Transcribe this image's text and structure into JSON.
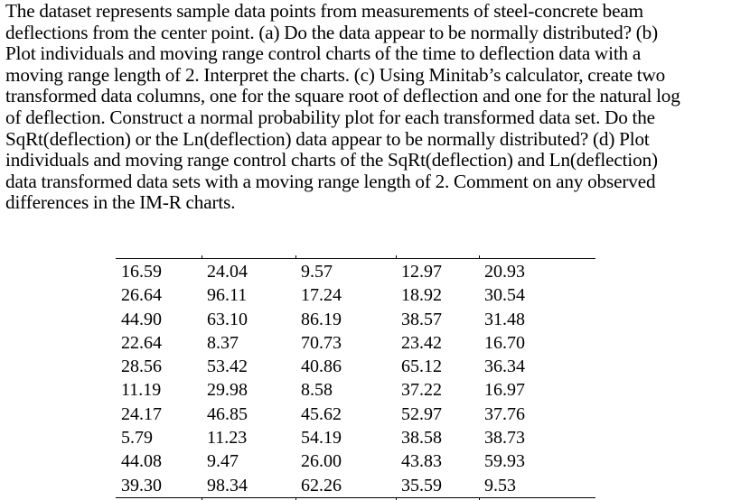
{
  "problem": {
    "lines": [
      "The dataset represents sample data points from measurements of steel-concrete beam",
      "deflections from the center point. (a)  Do the data appear to be normally distributed?  (b)",
      "Plot individuals and moving range control charts of the time to deflection data with a",
      "moving range length of 2.  Interpret the charts.  (c) Using Minitab’s calculator, create two",
      "transformed data columns, one for the square root of deflection and one for the natural log",
      "of deflection.  Construct a normal probability plot for each transformed data set.  Do the",
      "SqRt(deflection) or the Ln(deflection) data appear to be normally distributed?  (d) Plot",
      "individuals and moving range control charts of the SqRt(deflection) and Ln(deflection)",
      "data transformed data sets with a moving range length of 2.  Comment on any observed",
      "differences in the IM-R charts."
    ]
  },
  "table": {
    "rows": [
      [
        "16.59",
        "24.04",
        "9.57",
        "12.97",
        "20.93"
      ],
      [
        "26.64",
        "96.11",
        "17.24",
        "18.92",
        "30.54"
      ],
      [
        "44.90",
        "63.10",
        "86.19",
        "38.57",
        "31.48"
      ],
      [
        "22.64",
        "8.37",
        "70.73",
        "23.42",
        "16.70"
      ],
      [
        "28.56",
        "53.42",
        "40.86",
        "65.12",
        "36.34"
      ],
      [
        "11.19",
        "29.98",
        "8.58",
        "37.22",
        "16.97"
      ],
      [
        "24.17",
        "46.85",
        "45.62",
        "52.97",
        "37.76"
      ],
      [
        "5.79",
        "11.23",
        "54.19",
        "38.58",
        "38.73"
      ],
      [
        "44.08",
        "9.47",
        "26.00",
        "43.83",
        "59.93"
      ],
      [
        "39.30",
        "98.34",
        "62.26",
        "35.59",
        "9.53"
      ]
    ]
  }
}
